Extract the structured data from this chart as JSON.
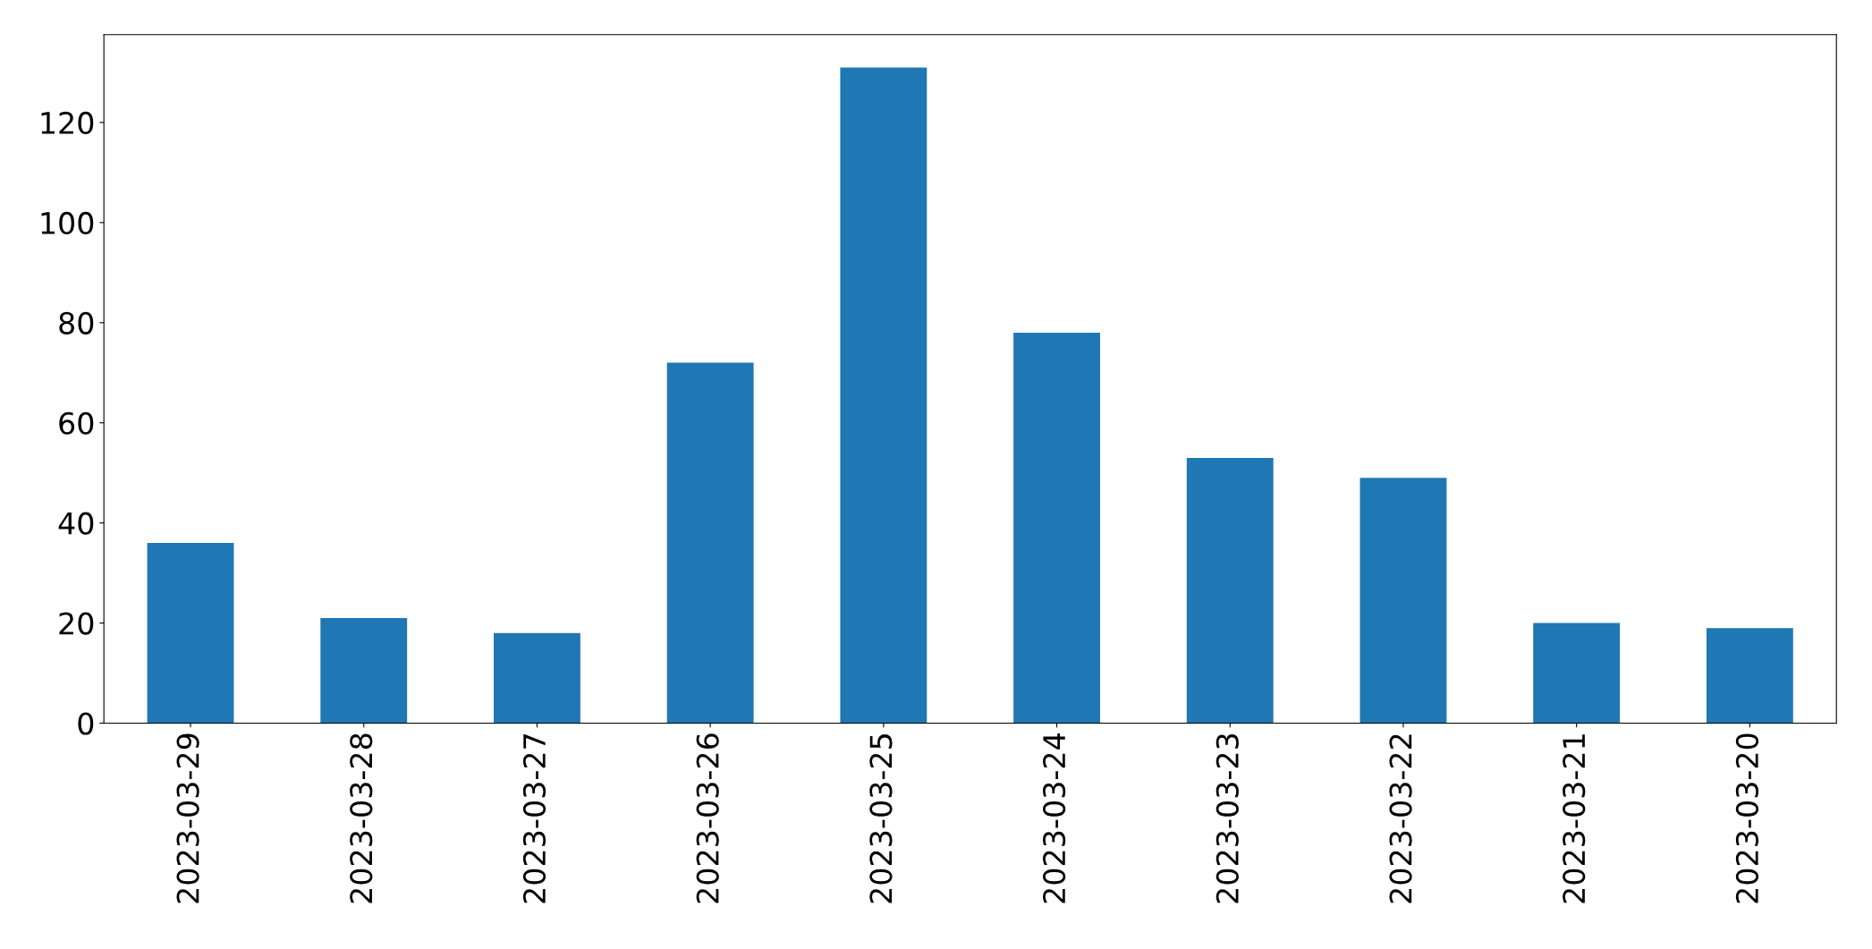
{
  "chart_data": {
    "type": "bar",
    "categories": [
      "2023-03-29",
      "2023-03-28",
      "2023-03-27",
      "2023-03-26",
      "2023-03-25",
      "2023-03-24",
      "2023-03-23",
      "2023-03-22",
      "2023-03-21",
      "2023-03-20"
    ],
    "values": [
      36,
      21,
      18,
      72,
      131,
      78,
      53,
      49,
      20,
      19
    ],
    "color": "#1f77b4",
    "ylim": [
      0,
      137.55
    ],
    "yticks": [
      0,
      20,
      40,
      60,
      80,
      100,
      120
    ],
    "grid": false
  }
}
